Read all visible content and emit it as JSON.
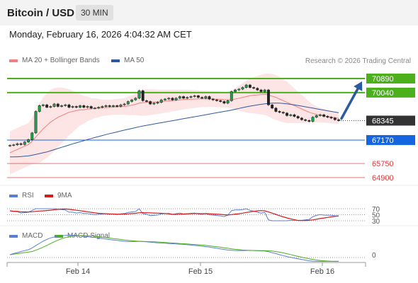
{
  "header": {
    "title": "Bitcoin / USD",
    "timeframe": "30 MIN"
  },
  "timestamp": "Monday, February 16, 2026 4:04:32 AM CET",
  "legend": {
    "bollinger": {
      "label": "MA 20 + Bollinger Bands",
      "color": "#f08080"
    },
    "ma50": {
      "label": "MA 50",
      "color": "#2c5aa0"
    }
  },
  "copyright": "Research © 2026 Trading Central",
  "rsi_legend": {
    "rsi": "RSI",
    "ma": "9MA"
  },
  "macd_legend": {
    "macd": "MACD",
    "signal": "MACD Signal"
  },
  "chart_data": {
    "type": "candlestick",
    "x_ticks": [
      "Feb 14",
      "Feb 15",
      "Feb 16"
    ],
    "price_levels": [
      {
        "value": 70890,
        "label": "70890",
        "kind": "resistance",
        "color": "#4caf1c"
      },
      {
        "value": 70040,
        "label": "70040",
        "kind": "resistance",
        "color": "#4caf1c"
      },
      {
        "value": 68345,
        "label": "68345",
        "kind": "last_price",
        "color": "#333333"
      },
      {
        "value": 67170,
        "label": "67170",
        "kind": "pivot",
        "color": "#1565e0"
      },
      {
        "value": 65750,
        "label": "65750",
        "kind": "support",
        "color": "#e03c3c"
      },
      {
        "value": 64900,
        "label": "64900",
        "kind": "support",
        "color": "#e03c3c"
      }
    ],
    "close": [
      66850,
      66880,
      66950,
      66900,
      67050,
      67200,
      67600,
      68900,
      69250,
      69300,
      69150,
      69200,
      69350,
      69200,
      69250,
      69300,
      69150,
      69200,
      69150,
      69250,
      69150,
      69200,
      69100,
      69100,
      69150,
      69200,
      69250,
      69200,
      69250,
      69200,
      69300,
      69350,
      69500,
      69600,
      69700,
      70150,
      69550,
      69500,
      69350,
      69400,
      69450,
      69600,
      69650,
      69700,
      69600,
      69700,
      69800,
      69700,
      69750,
      69800,
      69850,
      69750,
      69700,
      69800,
      69650,
      69600,
      69550,
      69500,
      69400,
      69550,
      70100,
      70200,
      70250,
      70350,
      70500,
      70350,
      70300,
      70200,
      70100,
      70200,
      69300,
      69100,
      68900,
      68850,
      68800,
      68650,
      68700,
      68600,
      68500,
      68400,
      68350,
      68300,
      68550,
      68650,
      68700,
      68600,
      68550,
      68500,
      68400,
      68345
    ],
    "ma20": [
      66400,
      66500,
      66600,
      66700,
      66800,
      66900,
      67100,
      67350,
      67600,
      67850,
      68050,
      68250,
      68400,
      68550,
      68650,
      68750,
      68850,
      68900,
      68950,
      69000,
      69000,
      69050,
      69050,
      69100,
      69100,
      69120,
      69130,
      69150,
      69160,
      69180,
      69190,
      69200,
      69230,
      69280,
      69330,
      69400,
      69430,
      69450,
      69460,
      69470,
      69480,
      69500,
      69520,
      69540,
      69560,
      69580,
      69600,
      69620,
      69630,
      69640,
      69650,
      69660,
      69660,
      69660,
      69660,
      69650,
      69640,
      69630,
      69610,
      69600,
      69620,
      69650,
      69700,
      69750,
      69800,
      69850,
      69880,
      69900,
      69920,
      69940,
      69900,
      69820,
      69750,
      69650,
      69550,
      69450,
      69350,
      69250,
      69150,
      69050,
      68950,
      68850,
      68780,
      68720,
      68680,
      68640,
      68600,
      68560,
      68520,
      68480
    ],
    "ma50": [
      66150,
      66150,
      66160,
      66170,
      66190,
      66210,
      66250,
      66300,
      66350,
      66400,
      66450,
      66520,
      66590,
      66660,
      66730,
      66800,
      66870,
      66940,
      67000,
      67070,
      67130,
      67200,
      67260,
      67320,
      67380,
      67440,
      67500,
      67560,
      67610,
      67660,
      67720,
      67770,
      67820,
      67870,
      67920,
      67970,
      68020,
      68060,
      68100,
      68140,
      68180,
      68220,
      68260,
      68300,
      68340,
      68380,
      68420,
      68460,
      68500,
      68540,
      68580,
      68620,
      68660,
      68700,
      68740,
      68780,
      68820,
      68860,
      68900,
      68940,
      68980,
      69030,
      69080,
      69130,
      69180,
      69220,
      69260,
      69300,
      69330,
      69360,
      69380,
      69400,
      69400,
      69400,
      69380,
      69360,
      69330,
      69300,
      69260,
      69220,
      69180,
      69140,
      69100,
      69060,
      69020,
      68980,
      68940,
      68900,
      68860,
      68820
    ],
    "bb_width": [
      1300,
      1300,
      1300,
      1300,
      1300,
      1300,
      1400,
      1600,
      1800,
      1900,
      1950,
      1950,
      1900,
      1800,
      1700,
      1550,
      1400,
      1250,
      1100,
      950,
      850,
      750,
      650,
      600,
      550,
      500,
      480,
      470,
      470,
      470,
      480,
      500,
      550,
      600,
      650,
      750,
      800,
      800,
      780,
      760,
      740,
      720,
      700,
      680,
      660,
      640,
      620,
      600,
      580,
      560,
      540,
      520,
      500,
      490,
      480,
      480,
      480,
      480,
      480,
      480,
      550,
      650,
      750,
      850,
      950,
      1050,
      1100,
      1150,
      1200,
      1250,
      1300,
      1350,
      1350,
      1350,
      1300,
      1250,
      1150,
      1050,
      950,
      850,
      750,
      650,
      550,
      480,
      450,
      420,
      400,
      380,
      360,
      340
    ],
    "projection": {
      "from": 68345,
      "to": 70890
    },
    "rsi": {
      "levels": [
        70,
        50,
        30
      ]
    },
    "macd": {
      "levels": [
        0
      ]
    }
  }
}
